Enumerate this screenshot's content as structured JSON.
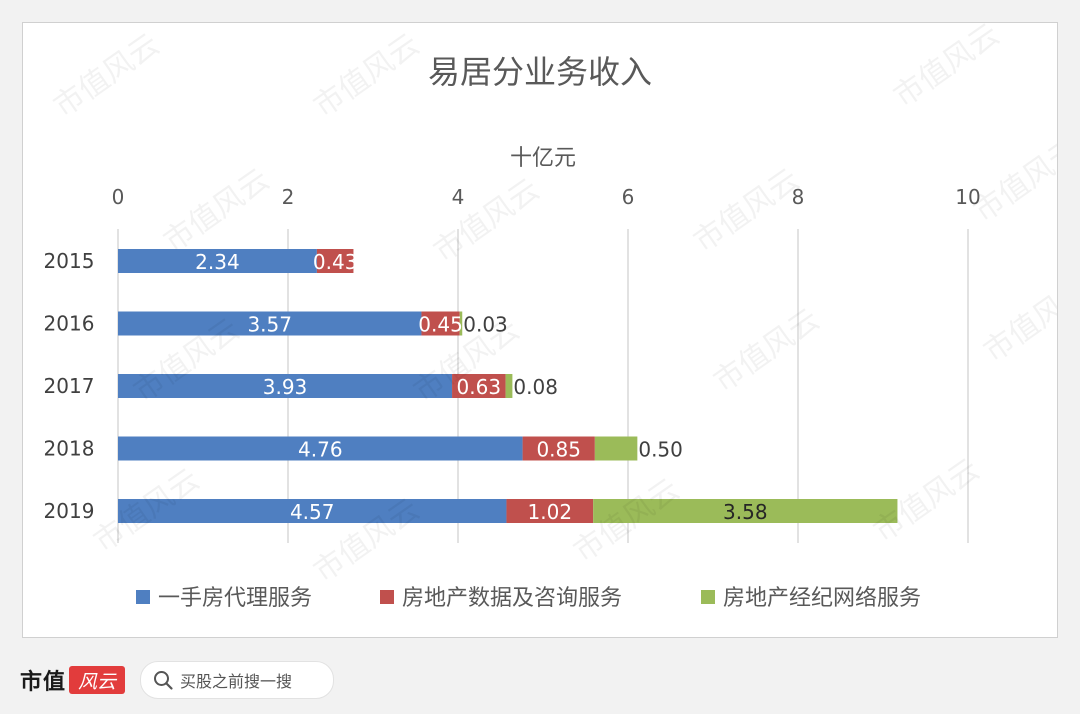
{
  "chart_data": {
    "type": "bar",
    "orientation": "horizontal",
    "stacked": true,
    "title": "易居分业务收入",
    "axis_title": "十亿元",
    "categories": [
      "2015",
      "2016",
      "2017",
      "2018",
      "2019"
    ],
    "xlim": [
      0,
      10
    ],
    "xticks": [
      0,
      2,
      4,
      6,
      8,
      10
    ],
    "xtick_labels": [
      "0",
      "2",
      "4",
      "6",
      "8",
      "10"
    ],
    "grid": true,
    "legend_position": "bottom",
    "series": [
      {
        "name": "一手房代理服务",
        "color": "#4f7fc1",
        "values": [
          2.34,
          3.57,
          3.93,
          4.76,
          4.57
        ],
        "labels": [
          "2.34",
          "3.57",
          "3.93",
          "4.76",
          "4.57"
        ]
      },
      {
        "name": "房地产数据及咨询服务",
        "color": "#c0504d",
        "values": [
          0.43,
          0.45,
          0.63,
          0.85,
          1.02
        ],
        "labels": [
          "0.43",
          "0.45",
          "0.63",
          "0.85",
          "1.02"
        ]
      },
      {
        "name": "房地产经纪网络服务",
        "color": "#9bbb59",
        "values": [
          0,
          0.03,
          0.08,
          0.5,
          3.58
        ],
        "labels": [
          "",
          "0.03",
          "0.08",
          "0.50",
          "3.58"
        ]
      }
    ]
  },
  "footer": {
    "brand_text": "市值",
    "brand_badge": "风云",
    "search_text": "买股之前搜一搜",
    "search_icon": "search-icon"
  },
  "watermark": "市值风云"
}
